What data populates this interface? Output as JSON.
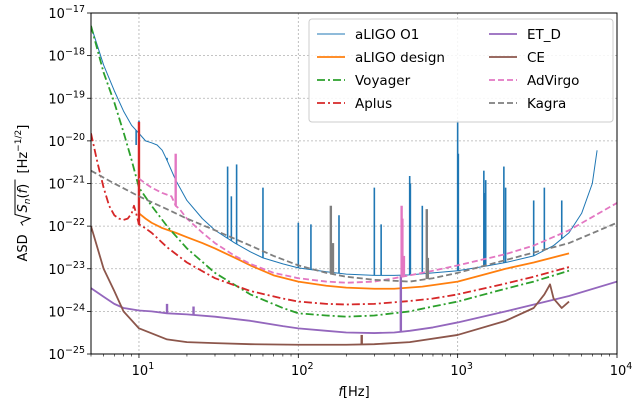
{
  "chart_data": {
    "type": "line",
    "x_scale": "log",
    "y_scale": "log",
    "xlim": [
      5,
      10000
    ],
    "ylim": [
      1e-25,
      1e-17
    ],
    "grid": true,
    "legend_placement": "top-right",
    "xlabel": {
      "main": "f",
      "unit": "[Hz]"
    },
    "ylabel": {
      "prefix": "ASD",
      "sqrt_content": "S",
      "sub": "n",
      "arg": "(f)",
      "unit_open": "[Hz",
      "unit_exp": "−1/2",
      "unit_close": "]"
    },
    "xticks": [
      {
        "value": 10,
        "base": "10",
        "exp": "1"
      },
      {
        "value": 100,
        "base": "10",
        "exp": "2"
      },
      {
        "value": 1000,
        "base": "10",
        "exp": "3"
      },
      {
        "value": 10000,
        "base": "10",
        "exp": "4"
      }
    ],
    "yticks": [
      {
        "value": 1e-25,
        "base": "10",
        "exp": "−25"
      },
      {
        "value": 1e-24,
        "base": "10",
        "exp": "−24"
      },
      {
        "value": 1e-23,
        "base": "10",
        "exp": "−23"
      },
      {
        "value": 1e-22,
        "base": "10",
        "exp": "−22"
      },
      {
        "value": 1e-21,
        "base": "10",
        "exp": "−21"
      },
      {
        "value": 1e-20,
        "base": "10",
        "exp": "−20"
      },
      {
        "value": 1e-19,
        "base": "10",
        "exp": "−19"
      },
      {
        "value": 1e-18,
        "base": "10",
        "exp": "−18"
      },
      {
        "value": 1e-17,
        "base": "10",
        "exp": "−17"
      }
    ],
    "series": [
      {
        "name": "aLIGO O1",
        "color": "#1f77b4",
        "dash": "solid",
        "width": 1.0,
        "x": [
          5,
          6,
          7,
          8,
          9,
          10,
          11,
          12,
          13,
          14,
          15,
          17,
          20,
          25,
          30,
          40,
          50,
          60,
          80,
          100,
          150,
          200,
          300,
          400,
          500,
          700,
          1000,
          1500,
          2000,
          3000,
          4000,
          5000,
          6000,
          7000,
          7500
        ],
        "y": [
          5e-18,
          6e-19,
          1.5e-19,
          5e-20,
          2.3e-20,
          1.5e-20,
          1e-20,
          9e-21,
          8e-21,
          6e-21,
          3.5e-21,
          1.2e-21,
          4e-22,
          1.5e-22,
          8e-23,
          4e-23,
          2.5e-23,
          1.8e-23,
          1.3e-23,
          1.05e-23,
          8.5e-24,
          7.5e-24,
          7e-24,
          7e-24,
          7.2e-24,
          8e-24,
          9e-24,
          1.15e-23,
          1.4e-23,
          2e-23,
          3.5e-23,
          7e-23,
          2e-22,
          1e-21,
          6e-21
        ],
        "spikes": [
          [
            9.6,
            8e-21
          ],
          [
            10,
            3e-20
          ],
          [
            15,
            4e-21
          ],
          [
            36,
            2.5e-21
          ],
          [
            38,
            5e-22
          ],
          [
            41,
            2.8e-21
          ],
          [
            60,
            8e-22
          ],
          [
            100,
            1.2e-22
          ],
          [
            120,
            1.1e-22
          ],
          [
            180,
            1.8e-22
          ],
          [
            300,
            8e-22
          ],
          [
            331,
            1.1e-22
          ],
          [
            500,
            1.5e-21
          ],
          [
            505,
            1e-21
          ],
          [
            600,
            3e-22
          ],
          [
            1000,
            3e-20
          ],
          [
            1010,
            5e-21
          ],
          [
            1460,
            2e-21
          ],
          [
            1480,
            6e-22
          ],
          [
            1500,
            1.2e-21
          ],
          [
            1950,
            2.5e-21
          ],
          [
            2000,
            8e-22
          ],
          [
            3000,
            4e-22
          ],
          [
            3500,
            8e-22
          ],
          [
            4500,
            4e-22
          ]
        ]
      },
      {
        "name": "aLIGO design",
        "color": "#ff7f0e",
        "dash": "solid",
        "width": 1.8,
        "x": [
          10,
          11,
          12,
          14,
          17,
          20,
          25,
          30,
          40,
          50,
          70,
          100,
          150,
          200,
          300,
          400,
          600,
          1000,
          1500,
          2000,
          3000,
          5000
        ],
        "y": [
          2e-22,
          1.5e-22,
          1.2e-22,
          9e-23,
          7e-23,
          5.5e-23,
          4e-23,
          3e-23,
          1.8e-23,
          1.2e-23,
          7e-24,
          5e-24,
          4e-24,
          3.6e-24,
          3.4e-24,
          3.4e-24,
          3.8e-24,
          5e-24,
          7.5e-24,
          1e-23,
          1.4e-23,
          2.3e-23
        ]
      },
      {
        "name": "Voyager",
        "color": "#2ca02c",
        "dash": "8,3,2,3",
        "width": 1.8,
        "x": [
          5,
          6,
          7,
          8,
          9,
          10,
          12,
          15,
          20,
          30,
          50,
          80,
          100,
          150,
          200,
          300,
          500,
          700,
          1000,
          2000,
          3000,
          5000
        ],
        "y": [
          5e-18,
          4e-19,
          8e-20,
          1.6e-20,
          3.5e-21,
          8e-22,
          3e-22,
          1e-22,
          3e-23,
          8e-24,
          2.5e-24,
          1.2e-24,
          9e-25,
          8e-25,
          7.5e-25,
          8e-25,
          1e-24,
          1.3e-24,
          1.7e-24,
          3.4e-24,
          5e-24,
          9e-24
        ]
      },
      {
        "name": "Aplus",
        "color": "#d62728",
        "dash": "8,3,2,3",
        "width": 1.8,
        "x": [
          5,
          5.5,
          6,
          6.5,
          7,
          7.5,
          8,
          8.5,
          9,
          9.3,
          9.6,
          10,
          10.5,
          12,
          15,
          20,
          30,
          50,
          80,
          100,
          150,
          200,
          300,
          500,
          700,
          1000,
          2000,
          3000,
          5000
        ],
        "y": [
          1.5e-20,
          3e-21,
          8e-22,
          3e-22,
          1.8e-22,
          1.5e-22,
          1.4e-22,
          1.5e-22,
          2e-22,
          3e-22,
          2e-22,
          1.1e-22,
          1e-22,
          7e-23,
          3.2e-23,
          1.4e-23,
          6e-24,
          3e-24,
          2e-24,
          1.7e-24,
          1.5e-24,
          1.45e-24,
          1.5e-24,
          1.75e-24,
          2e-24,
          2.5e-24,
          4.5e-24,
          6.5e-24,
          1.1e-23
        ],
        "spikes": [
          [
            10,
            2.8e-20
          ]
        ]
      },
      {
        "name": "ET_D",
        "color": "#9467bd",
        "dash": "solid",
        "width": 1.8,
        "x": [
          5,
          6,
          7,
          8,
          10,
          12,
          15,
          20,
          30,
          50,
          80,
          100,
          150,
          200,
          300,
          400,
          500,
          700,
          1000,
          2000,
          5000,
          10000
        ],
        "y": [
          3.5e-24,
          2.2e-24,
          1.5e-24,
          1.2e-24,
          1.05e-24,
          1e-24,
          9e-25,
          8.5e-25,
          7.5e-25,
          6e-25,
          4.5e-25,
          4e-25,
          3.5e-25,
          3.2e-25,
          3.1e-25,
          3.2e-25,
          3.5e-25,
          4.2e-25,
          5.5e-25,
          1e-24,
          2.3e-24,
          5e-24
        ],
        "spikes": [
          [
            15,
            1.5e-24
          ],
          [
            22,
            1.3e-24
          ],
          [
            440,
            7e-24
          ]
        ]
      },
      {
        "name": "CE",
        "color": "#8c564b",
        "dash": "solid",
        "width": 1.8,
        "x": [
          5,
          5.5,
          6,
          7,
          8,
          10,
          15,
          20,
          30,
          50,
          100,
          200,
          300,
          500,
          1000,
          2000,
          3000,
          3500,
          3800,
          4000,
          4500,
          5000
        ],
        "y": [
          1e-22,
          3e-23,
          1e-23,
          3e-24,
          1e-24,
          4e-25,
          2.2e-25,
          1.9e-25,
          1.8e-25,
          1.7e-25,
          1.65e-25,
          1.65e-25,
          1.7e-25,
          1.9e-25,
          2.8e-25,
          6e-25,
          1.2e-24,
          2.5e-24,
          4.3e-24,
          2e-24,
          1.2e-24,
          1.7e-24
        ],
        "spikes": [
          [
            250,
            2.8e-25
          ]
        ]
      },
      {
        "name": "AdVirgo",
        "color": "#e377c2",
        "dash": "6,3",
        "width": 1.8,
        "x": [
          10,
          11,
          12,
          14,
          16,
          17,
          18,
          20,
          25,
          30,
          40,
          50,
          70,
          100,
          150,
          200,
          300,
          400,
          500,
          700,
          1000,
          2000,
          3000,
          5000,
          10000
        ],
        "y": [
          1.3e-21,
          1e-21,
          8e-22,
          6e-22,
          5e-22,
          3e-22,
          2.5e-22,
          1.5e-22,
          7e-23,
          4e-23,
          2e-23,
          1.3e-23,
          8e-24,
          6e-24,
          5e-24,
          4.7e-24,
          5e-24,
          6e-24,
          7e-24,
          9e-24,
          1.2e-23,
          2.2e-23,
          3.5e-23,
          8e-23,
          3.5e-22
        ],
        "spikes": [
          [
            17,
            5e-21
          ],
          [
            445,
            3e-22
          ],
          [
            450,
            1.5e-22
          ],
          [
            460,
            2e-23
          ]
        ]
      },
      {
        "name": "Kagra",
        "color": "#7f7f7f",
        "dash": "6,3",
        "width": 1.8,
        "x": [
          5,
          7,
          10,
          15,
          20,
          30,
          50,
          70,
          100,
          150,
          200,
          300,
          500,
          700,
          1000,
          2000,
          5000,
          10000
        ],
        "y": [
          2e-21,
          1e-21,
          5e-22,
          2.5e-22,
          1.5e-22,
          8e-23,
          3.5e-23,
          2e-23,
          1.2e-23,
          8e-24,
          6.5e-24,
          5.5e-24,
          5e-24,
          6e-24,
          8e-24,
          1.6e-23,
          4e-23,
          1.2e-22
        ],
        "spikes": [
          [
            160,
            3e-22
          ],
          [
            165,
            4e-23
          ],
          [
            640,
            2.5e-22
          ],
          [
            650,
            1.8e-23
          ]
        ]
      }
    ]
  }
}
